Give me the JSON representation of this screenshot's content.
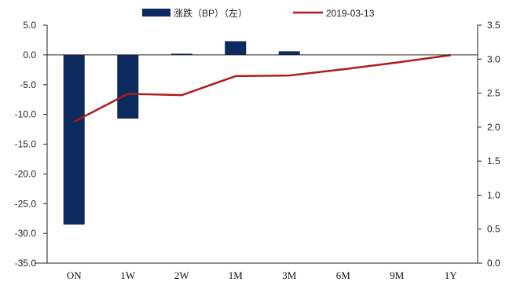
{
  "chart_data": {
    "type": "bar",
    "categories": [
      "ON",
      "1W",
      "2W",
      "1M",
      "3M",
      "6M",
      "9M",
      "1Y"
    ],
    "series": [
      {
        "name": "涨跌（BP）（左）",
        "type": "bar",
        "axis": "left",
        "values": [
          -28.5,
          -10.7,
          0.2,
          2.3,
          0.6,
          0.0,
          0.0,
          0.0
        ]
      },
      {
        "name": "2019-03-13",
        "type": "line",
        "axis": "right",
        "values": [
          2.08,
          2.49,
          2.47,
          2.75,
          2.76,
          2.85,
          2.95,
          3.06
        ]
      }
    ],
    "y_left": {
      "ylim": [
        -35,
        5
      ],
      "ticks": [
        5,
        0,
        -5,
        -10,
        -15,
        -20,
        -25,
        -30,
        -35
      ],
      "tick_labels": [
        "5.0",
        "0.0",
        "-5.0",
        "-10.0",
        "-15.0",
        "-20.0",
        "-25.0",
        "-30.0",
        "-35.0"
      ]
    },
    "y_right": {
      "ylim": [
        0,
        3.5
      ],
      "ticks": [
        3.5,
        3.0,
        2.5,
        2.0,
        1.5,
        1.0,
        0.5,
        0.0
      ],
      "tick_labels": [
        "3.5",
        "3.0",
        "2.5",
        "2.0",
        "1.5",
        "1.0",
        "0.5",
        "0.0"
      ]
    },
    "grid": false,
    "legend": "top-center",
    "colors": {
      "bar": "#0d2a5e",
      "line": "#b01c1c",
      "axis": "#222222"
    }
  }
}
